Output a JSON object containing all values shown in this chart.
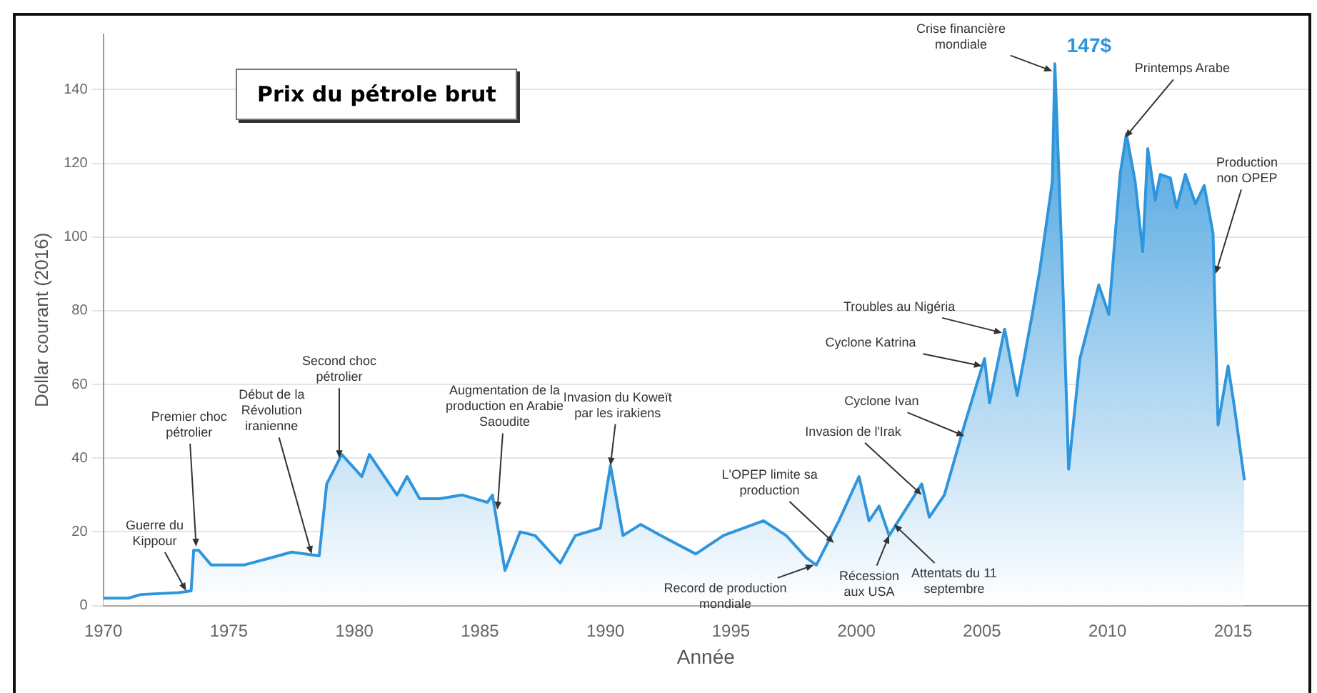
{
  "chart_data": {
    "type": "area",
    "title": "Prix du pétrole brut",
    "xlabel": "Année",
    "ylabel": "Dollar courant (2016)",
    "xlim": [
      1970,
      2018
    ],
    "xticks": [
      1970,
      1975,
      1980,
      1985,
      1990,
      1995,
      2000,
      2005,
      2010,
      2015
    ],
    "ylim": [
      0,
      155
    ],
    "yticks": [
      0,
      20,
      40,
      60,
      80,
      100,
      120,
      140
    ],
    "grid": "y",
    "legend": false,
    "marker": "none",
    "series": [
      {
        "color": "#2f95dc",
        "x": [
          1970,
          1971,
          1971.5,
          1973,
          1973.5,
          1973.6,
          1973.8,
          1974.3,
          1975.6,
          1976.7,
          1977.5,
          1978.6,
          1978.9,
          1979.5,
          1980.3,
          1980.6,
          1981.1,
          1981.7,
          1982.1,
          1982.6,
          1983.4,
          1984.3,
          1985.3,
          1985.5,
          1986.0,
          1986.6,
          1987.2,
          1988.2,
          1988.8,
          1989.8,
          1990.2,
          1990.7,
          1991.4,
          1992.2,
          1993.6,
          1994.7,
          1996.3,
          1997.2,
          1998.0,
          1998.4,
          1999.3,
          2000.1,
          2000.5,
          2000.9,
          2001.3,
          2002.6,
          2002.9,
          2003.5,
          2004.3,
          2005.1,
          2005.3,
          2005.9,
          2006.4,
          2007.0,
          2007.3,
          2007.8,
          2007.9,
          2008.2,
          2008.45,
          2008.9,
          2009.65,
          2010.05,
          2010.5,
          2010.75,
          2011.1,
          2011.4,
          2011.6,
          2011.9,
          2012.1,
          2012.5,
          2012.75,
          2013.1,
          2013.5,
          2013.85,
          2014.2,
          2014.4,
          2014.8,
          2015.05,
          2015.45
        ],
        "values": [
          2,
          2,
          3,
          3.5,
          4,
          15,
          15,
          11,
          11,
          13,
          14.5,
          13.5,
          33,
          41,
          35,
          41,
          36,
          30,
          35,
          29,
          29,
          30,
          28,
          30,
          9.5,
          20,
          19,
          11.5,
          19,
          21,
          38,
          19,
          22,
          19,
          14,
          19,
          23,
          19,
          13,
          11,
          23,
          35,
          23,
          27,
          19,
          33,
          24,
          30,
          49,
          67,
          55,
          75,
          57,
          79,
          91,
          115,
          147,
          91,
          37,
          67,
          87,
          79,
          117,
          128,
          115,
          96,
          124,
          110,
          117,
          116,
          108,
          117,
          109,
          114,
          101,
          49,
          65,
          54,
          34
        ]
      }
    ],
    "annotations": [
      {
        "text": "Guerre du Kippour",
        "x": 1973.3,
        "y": 4
      },
      {
        "text": "Premier choc pétrolier",
        "x": 1973.7,
        "y": 16
      },
      {
        "text": "Début de la Révolution iranienne",
        "x": 1978.3,
        "y": 14
      },
      {
        "text": "Second choc pétrolier",
        "x": 1979.4,
        "y": 40
      },
      {
        "text": "Augmentation de la production en Arabie Saoudite",
        "x": 1985.7,
        "y": 26
      },
      {
        "text": "Invasion du Koweït par les irakiens",
        "x": 1990.2,
        "y": 38
      },
      {
        "text": "Record de production mondiale",
        "x": 1998.3,
        "y": 11
      },
      {
        "text": "L'OPEP limite sa production",
        "x": 1999.1,
        "y": 17
      },
      {
        "text": "Récession aux USA",
        "x": 2001.3,
        "y": 19
      },
      {
        "text": "Attentats du 11 septembre",
        "x": 2001.5,
        "y": 22
      },
      {
        "text": "Invasion de l'Irak",
        "x": 2002.6,
        "y": 30
      },
      {
        "text": "Cyclone Ivan",
        "x": 2004.3,
        "y": 46
      },
      {
        "text": "Cyclone Katrina",
        "x": 2005.0,
        "y": 65
      },
      {
        "text": "Troubles au Nigéria",
        "x": 2005.8,
        "y": 74
      },
      {
        "text": "Crise financière mondiale",
        "x": 2007.8,
        "y": 145
      },
      {
        "text": "147$",
        "x": 2007.9,
        "y": 147
      },
      {
        "text": "Printemps Arabe",
        "x": 2010.7,
        "y": 127
      },
      {
        "text": "Production non OPEP",
        "x": 2014.3,
        "y": 90
      }
    ]
  }
}
